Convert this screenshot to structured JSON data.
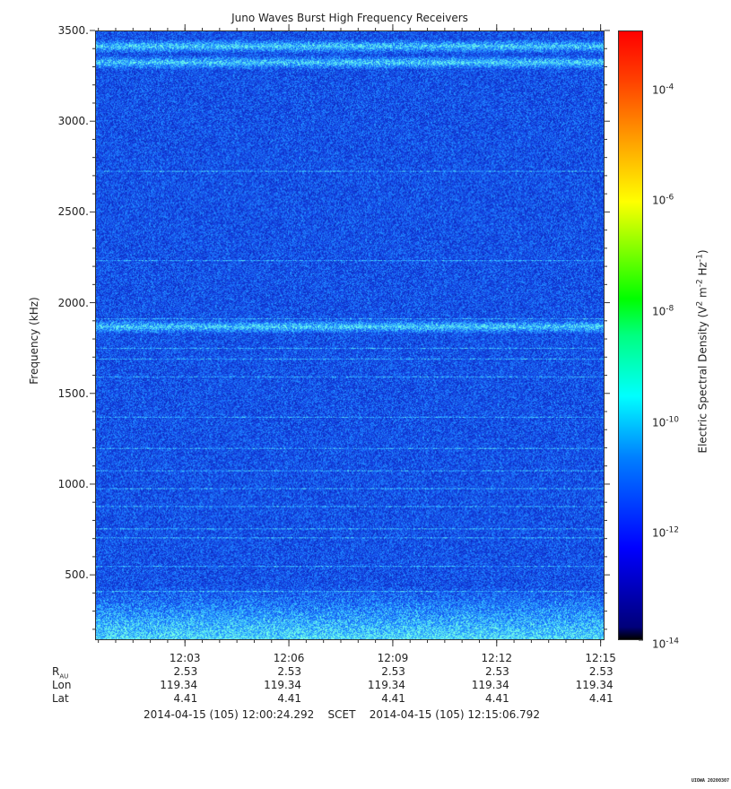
{
  "chart_data": {
    "type": "heatmap",
    "title": "Juno Waves Burst High Frequency Receivers",
    "ylabel": "Frequency (kHz)",
    "ylim": [
      140,
      3500
    ],
    "yticks": [
      "3500.",
      "3000.",
      "2500.",
      "2000.",
      "1500.",
      "1000.",
      "500."
    ],
    "ytick_values": [
      3500,
      3000,
      2500,
      2000,
      1500,
      1000,
      500
    ],
    "xticks": [
      "12:03",
      "12:06",
      "12:09",
      "12:12",
      "12:15"
    ],
    "xtick_values": [
      "12:03",
      "12:06",
      "12:09",
      "12:12",
      "12:15"
    ],
    "xlim": [
      "12:00:24.292",
      "12:15:06.792"
    ],
    "colorbar": {
      "label_base": "Electric Spectral Density (V",
      "label_exp1": "2",
      "label_mid": " m",
      "label_exp2": "-2",
      "label_mid2": " Hz",
      "label_exp3": "-1",
      "label_end": ")",
      "scale": "log",
      "range": [
        1e-14,
        0.001
      ],
      "tick_base": "10",
      "tick_exps": [
        "-4",
        "-6",
        "-8",
        "-10",
        "-12",
        "-14"
      ],
      "tick_log_values": [
        -4,
        -6,
        -8,
        -10,
        -12,
        -14
      ]
    },
    "features": [
      {
        "name": "emission band",
        "freq_khz": 3420
      },
      {
        "name": "emission band",
        "freq_khz": 3330
      },
      {
        "name": "emission band",
        "freq_khz": 1870
      },
      {
        "name": "low frequency enhancement",
        "freq_khz": 180
      }
    ]
  },
  "ephemeris": {
    "rows": [
      {
        "label": "R",
        "label_sub": "AU",
        "values": [
          "2.53",
          "2.53",
          "2.53",
          "2.53",
          "2.53"
        ]
      },
      {
        "label": "Lon",
        "values": [
          "119.34",
          "119.34",
          "119.34",
          "119.34",
          "119.34"
        ]
      },
      {
        "label": "Lat",
        "values": [
          "4.41",
          "4.41",
          "4.41",
          "4.41",
          "4.41"
        ]
      }
    ]
  },
  "time_range": {
    "start": "2014-04-15 (105) 12:00:24.292",
    "label": "SCET",
    "end": "2014-04-15 (105) 12:15:06.792"
  },
  "stamp": "UIOWA 20200307"
}
